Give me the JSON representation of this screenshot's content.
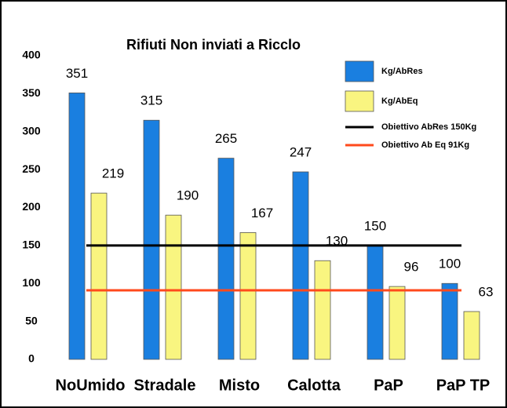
{
  "chart_data": {
    "type": "bar",
    "title": "Rifiuti Non inviati a Ricclo",
    "categories": [
      "NoUmido",
      "Stradale",
      "Misto",
      "Calotta",
      "PaP",
      "PaP TP"
    ],
    "series": [
      {
        "name": "Kg/AbRes",
        "color": "#1a7fe0",
        "values": [
          351,
          315,
          265,
          247,
          150,
          100
        ]
      },
      {
        "name": "Kg/AbEq",
        "color": "#f9f580",
        "values": [
          219,
          190,
          167,
          130,
          96,
          63
        ]
      }
    ],
    "reference_lines": [
      {
        "name": "Obiettivo AbRes 150Kg",
        "color": "#000000",
        "value": 150
      },
      {
        "name": "Obiettivo Ab Eq 91Kg",
        "color": "#ff4a1c",
        "value": 91
      }
    ],
    "ylim": [
      0,
      400
    ],
    "yticks": [
      0,
      50,
      100,
      150,
      200,
      250,
      300,
      350,
      400
    ],
    "grid": false
  }
}
